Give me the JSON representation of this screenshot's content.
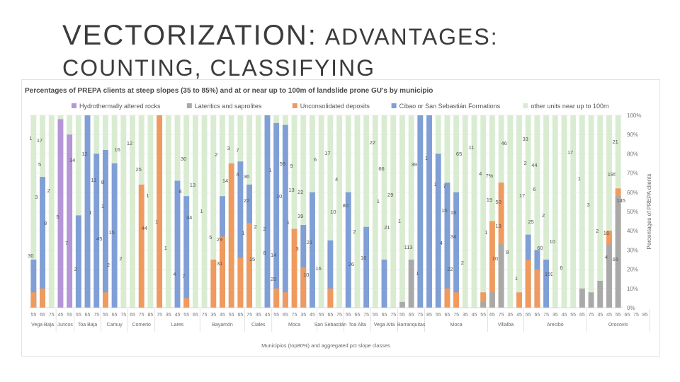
{
  "slide": {
    "title_main": "VECTORIZATION:",
    "title_rest": "ADVANTAGES:",
    "subtitle": "COUNTING, CLASSIFYING"
  },
  "chart_data": {
    "type": "bar",
    "stacked": true,
    "title": "Percentages of PREPA clients at steep slopes (35 to 85%) and at or near up to 100m of landslide prone GU's by municipio",
    "xlabel": "Municipios (top80%) and aggregated pct slope classes",
    "ylabel": "Percentages of PREPA clients",
    "ylim": [
      0,
      100
    ],
    "yticks": [
      "0%",
      "10%",
      "20%",
      "30%",
      "40%",
      "50%",
      "60%",
      "70%",
      "80%",
      "90%",
      "100%"
    ],
    "legend_position": "top",
    "grid": true,
    "series": [
      {
        "name": "Hydrothermally altered rocks",
        "color": "#b596d8"
      },
      {
        "name": "Lateritics and saprolites",
        "color": "#a9a9a9"
      },
      {
        "name": "Unconsolidated deposits",
        "color": "#ef9a5e"
      },
      {
        "name": "Cibao or San Sebastián Formations",
        "color": "#7f9fd6"
      },
      {
        "name": "other units near up to 100m",
        "color": "#d9ecd1"
      }
    ],
    "groups": [
      {
        "name": "Vega Baja",
        "classes": [
          "55",
          "65",
          "75"
        ]
      },
      {
        "name": "Juncos",
        "classes": [
          "45",
          "55"
        ]
      },
      {
        "name": "Toa Baja",
        "classes": [
          "55",
          "65",
          "75"
        ]
      },
      {
        "name": "Camuy",
        "classes": [
          "55",
          "65",
          "75"
        ]
      },
      {
        "name": "Comerio",
        "classes": [
          "65",
          "75",
          "85"
        ]
      },
      {
        "name": "Lares",
        "classes": [
          "75",
          "35",
          "45",
          "55",
          "65"
        ]
      },
      {
        "name": "Bayamón",
        "classes": [
          "75",
          "35",
          "45",
          "55",
          "65"
        ]
      },
      {
        "name": "Ciales",
        "classes": [
          "75",
          "35",
          "45"
        ]
      },
      {
        "name": "Moca",
        "classes": [
          "55",
          "65",
          "75",
          "35",
          "45"
        ]
      },
      {
        "name": "San Sebastián",
        "classes": [
          "55",
          "65",
          "75"
        ]
      },
      {
        "name": "Toa Alta",
        "classes": [
          "55",
          "65",
          "75"
        ]
      },
      {
        "name": "Vega Alta",
        "classes": [
          "55",
          "65",
          "75"
        ]
      },
      {
        "name": "Barranquitas",
        "classes": [
          "55",
          "65",
          "75"
        ]
      },
      {
        "name": "Moca",
        "classes": [
          "85",
          "55",
          "65",
          "75",
          "35",
          "45",
          "55"
        ]
      },
      {
        "name": "Villalba",
        "classes": [
          "65",
          "75",
          "35",
          "45"
        ]
      },
      {
        "name": "Arecibo",
        "classes": [
          "55",
          "65",
          "75",
          "35",
          "45",
          "55",
          "65"
        ]
      },
      {
        "name": "Orocovis",
        "classes": [
          "75",
          "35",
          "45",
          "55",
          "65",
          "75",
          "85"
        ]
      }
    ],
    "bars": [
      {
        "g": 0,
        "purple": 0,
        "gray": 0,
        "orange": 8,
        "blue": 25,
        "labels": [
          "1",
          "3",
          "30"
        ]
      },
      {
        "g": 0,
        "purple": 0,
        "gray": 0,
        "orange": 10,
        "blue": 68,
        "labels": [
          "5",
          "8",
          "17"
        ]
      },
      {
        "g": 0,
        "purple": 0,
        "gray": 0,
        "orange": 0,
        "blue": 0,
        "labels": [
          "2"
        ]
      },
      {
        "g": 1,
        "purple": 98,
        "gray": 0,
        "orange": 0,
        "blue": 0,
        "labels": [
          "5"
        ]
      },
      {
        "g": 1,
        "purple": 90,
        "gray": 0,
        "orange": 0,
        "blue": 0,
        "labels": [
          "7",
          "34"
        ]
      },
      {
        "g": 2,
        "purple": 0,
        "gray": 0,
        "orange": 0,
        "blue": 48,
        "labels": [
          "2"
        ]
      },
      {
        "g": 2,
        "purple": 0,
        "gray": 0,
        "orange": 0,
        "blue": 100,
        "labels": [
          "12",
          "1"
        ]
      },
      {
        "g": 2,
        "purple": 0,
        "gray": 0,
        "orange": 0,
        "blue": 80,
        "labels": [
          "11",
          "45"
        ]
      },
      {
        "g": 3,
        "purple": 0,
        "gray": 0,
        "orange": 8,
        "blue": 82,
        "labels": [
          "1",
          "2",
          "8"
        ]
      },
      {
        "g": 3,
        "purple": 0,
        "gray": 0,
        "orange": 0,
        "blue": 75,
        "labels": [
          "15",
          "16"
        ]
      },
      {
        "g": 3,
        "purple": 0,
        "gray": 0,
        "orange": 0,
        "blue": 0,
        "labels": [
          "2"
        ]
      },
      {
        "g": 4,
        "purple": 0,
        "gray": 0,
        "orange": 0,
        "blue": 0,
        "labels": [
          "12"
        ]
      },
      {
        "g": 4,
        "purple": 0,
        "gray": 0,
        "orange": 64,
        "blue": 0,
        "labels": [
          "25",
          "44"
        ]
      },
      {
        "g": 4,
        "purple": 0,
        "gray": 0,
        "orange": 0,
        "blue": 0,
        "labels": [
          "1"
        ]
      },
      {
        "g": 5,
        "purple": 0,
        "gray": 0,
        "orange": 100,
        "blue": 0,
        "labels": [
          "1"
        ]
      },
      {
        "g": 5,
        "purple": 0,
        "gray": 0,
        "orange": 0,
        "blue": 0,
        "labels": [
          "1"
        ]
      },
      {
        "g": 5,
        "purple": 0,
        "gray": 0,
        "orange": 0,
        "blue": 66,
        "labels": [
          "4",
          "8"
        ]
      },
      {
        "g": 5,
        "purple": 0,
        "gray": 0,
        "orange": 5,
        "blue": 58,
        "labels": [
          "30",
          "34",
          "7"
        ]
      },
      {
        "g": 5,
        "purple": 0,
        "gray": 0,
        "orange": 0,
        "blue": 0,
        "labels": [
          "13"
        ]
      },
      {
        "g": 6,
        "purple": 0,
        "gray": 0,
        "orange": 0,
        "blue": 0,
        "labels": [
          "1"
        ]
      },
      {
        "g": 6,
        "purple": 0,
        "gray": 0,
        "orange": 25,
        "blue": 0,
        "labels": [
          "5",
          "2"
        ]
      },
      {
        "g": 6,
        "purple": 0,
        "gray": 0,
        "orange": 37,
        "blue": 58,
        "labels": [
          "31",
          "14",
          "29"
        ]
      },
      {
        "g": 6,
        "purple": 0,
        "gray": 0,
        "orange": 75,
        "blue": 0,
        "labels": [
          "3"
        ]
      },
      {
        "g": 7,
        "purple": 0,
        "gray": 0,
        "orange": 26,
        "blue": 76,
        "labels": [
          "4",
          "1",
          "7"
        ]
      },
      {
        "g": 7,
        "purple": 0,
        "gray": 0,
        "orange": 44,
        "blue": 64,
        "labels": [
          "22",
          "15",
          "36"
        ]
      },
      {
        "g": 7,
        "purple": 0,
        "gray": 0,
        "orange": 0,
        "blue": 0,
        "labels": [
          "2"
        ]
      },
      {
        "g": 8,
        "purple": 0,
        "gray": 0,
        "orange": 0,
        "blue": 100,
        "labels": [
          "8",
          "1",
          "2"
        ]
      },
      {
        "g": 8,
        "purple": 0,
        "gray": 0,
        "orange": 10,
        "blue": 96,
        "labels": [
          "20",
          "10",
          "14"
        ]
      },
      {
        "g": 8,
        "purple": 0,
        "gray": 0,
        "orange": 8,
        "blue": 95,
        "labels": [
          "59",
          "1"
        ]
      },
      {
        "g": 8,
        "purple": 0,
        "gray": 0,
        "orange": 41,
        "blue": 0,
        "labels": [
          "13",
          "3",
          "9"
        ]
      },
      {
        "g": 8,
        "purple": 0,
        "gray": 0,
        "orange": 21,
        "blue": 43,
        "labels": [
          "39",
          "10",
          "22"
        ]
      },
      {
        "g": 9,
        "purple": 0,
        "gray": 0,
        "orange": 0,
        "blue": 60,
        "labels": [
          "21",
          "6"
        ]
      },
      {
        "g": 9,
        "purple": 0,
        "gray": 0,
        "orange": 0,
        "blue": 0,
        "labels": [
          "16"
        ]
      },
      {
        "g": 9,
        "purple": 0,
        "gray": 0,
        "orange": 10,
        "blue": 35,
        "labels": [
          "17",
          "10"
        ]
      },
      {
        "g": 10,
        "purple": 0,
        "gray": 0,
        "orange": 0,
        "blue": 0,
        "labels": [
          "4"
        ]
      },
      {
        "g": 10,
        "purple": 0,
        "gray": 0,
        "orange": 0,
        "blue": 60,
        "labels": [
          "80",
          "26"
        ]
      },
      {
        "g": 10,
        "purple": 0,
        "gray": 0,
        "orange": 0,
        "blue": 0,
        "labels": [
          "2"
        ]
      },
      {
        "g": 11,
        "purple": 0,
        "gray": 0,
        "orange": 0,
        "blue": 42,
        "labels": [
          "16"
        ]
      },
      {
        "g": 11,
        "purple": 0,
        "gray": 0,
        "orange": 0,
        "blue": 0,
        "labels": [
          "22",
          "1"
        ]
      },
      {
        "g": 11,
        "purple": 0,
        "gray": 0,
        "orange": 0,
        "blue": 25,
        "labels": [
          "66",
          "21"
        ]
      },
      {
        "g": 12,
        "purple": 0,
        "gray": 0,
        "orange": 0,
        "blue": 0,
        "labels": [
          "29"
        ]
      },
      {
        "g": 12,
        "purple": 0,
        "gray": 3,
        "orange": 0,
        "blue": 0,
        "labels": [
          "1"
        ]
      },
      {
        "g": 12,
        "purple": 0,
        "gray": 25,
        "orange": 0,
        "blue": 0,
        "labels": [
          "113",
          "39"
        ]
      },
      {
        "g": 13,
        "purple": 0,
        "gray": 0,
        "orange": 0,
        "blue": 100,
        "labels": [
          "1"
        ]
      },
      {
        "g": 13,
        "purple": 0,
        "gray": 0,
        "orange": 0,
        "blue": 100,
        "labels": [
          "1"
        ]
      },
      {
        "g": 13,
        "purple": 0,
        "gray": 0,
        "orange": 0,
        "blue": 80,
        "labels": [
          "1",
          "4"
        ]
      },
      {
        "g": 13,
        "purple": 0,
        "gray": 0,
        "orange": 10,
        "blue": 65,
        "labels": [
          "15",
          "22",
          "7"
        ]
      },
      {
        "g": 13,
        "purple": 0,
        "gray": 0,
        "orange": 8,
        "blue": 60,
        "labels": [
          "34",
          "65",
          "18"
        ]
      },
      {
        "g": 13,
        "purple": 0,
        "gray": 0,
        "orange": 0,
        "blue": 0,
        "labels": [
          "2"
        ]
      },
      {
        "g": 13,
        "purple": 0,
        "gray": 0,
        "orange": 0,
        "blue": 0,
        "labels": [
          "11"
        ]
      },
      {
        "g": 14,
        "purple": 0,
        "gray": 3,
        "orange": 8,
        "blue": 0,
        "labels": [
          "4",
          "1"
        ]
      },
      {
        "g": 14,
        "purple": 0,
        "gray": 8,
        "orange": 45,
        "blue": 0,
        "labels": [
          "19",
          "10",
          "7%"
        ]
      },
      {
        "g": 14,
        "purple": 0,
        "gray": 33,
        "orange": 65,
        "blue": 0,
        "labels": [
          "13",
          "46",
          "50"
        ]
      },
      {
        "g": 14,
        "purple": 0,
        "gray": 0,
        "orange": 0,
        "blue": 0,
        "labels": [
          "8"
        ]
      },
      {
        "g": 15,
        "purple": 0,
        "gray": 0,
        "orange": 8,
        "blue": 0,
        "labels": [
          "1",
          "17"
        ]
      },
      {
        "g": 15,
        "purple": 0,
        "gray": 0,
        "orange": 25,
        "blue": 38,
        "labels": [
          "2",
          "25",
          "33"
        ]
      },
      {
        "g": 15,
        "purple": 0,
        "gray": 0,
        "orange": 20,
        "blue": 30,
        "labels": [
          "6",
          "60",
          "44"
        ]
      },
      {
        "g": 15,
        "purple": 0,
        "gray": 0,
        "orange": 0,
        "blue": 25,
        "labels": [
          "2",
          "159"
        ]
      },
      {
        "g": 15,
        "purple": 0,
        "gray": 0,
        "orange": 0,
        "blue": 0,
        "labels": [
          "10"
        ]
      },
      {
        "g": 15,
        "purple": 0,
        "gray": 0,
        "orange": 0,
        "blue": 0,
        "labels": [
          "6"
        ]
      },
      {
        "g": 15,
        "purple": 0,
        "gray": 0,
        "orange": 0,
        "blue": 0,
        "labels": [
          "17"
        ]
      },
      {
        "g": 16,
        "purple": 0,
        "gray": 10,
        "orange": 0,
        "blue": 0,
        "labels": [
          "1"
        ]
      },
      {
        "g": 16,
        "purple": 0,
        "gray": 8,
        "orange": 0,
        "blue": 0,
        "labels": [
          "3"
        ]
      },
      {
        "g": 16,
        "purple": 0,
        "gray": 14,
        "orange": 0,
        "blue": 0,
        "labels": [
          "2"
        ]
      },
      {
        "g": 16,
        "purple": 0,
        "gray": 33,
        "orange": 40,
        "blue": 0,
        "labels": [
          "4",
          "195",
          "16"
        ]
      },
      {
        "g": 16,
        "purple": 0,
        "gray": 58,
        "orange": 62,
        "blue": 0,
        "labels": [
          "21",
          "145",
          "65"
        ]
      }
    ]
  }
}
